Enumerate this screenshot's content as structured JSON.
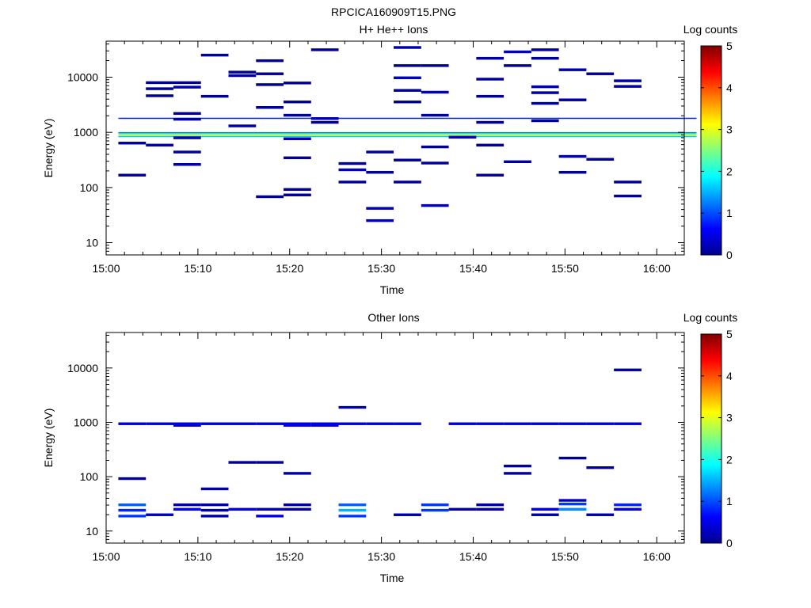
{
  "figure_title": "RPCICA160909T15.PNG",
  "colorbar": {
    "label": "Log counts",
    "ticks": [
      "0",
      "1",
      "2",
      "3",
      "4",
      "5"
    ],
    "range": [
      0,
      5
    ],
    "colormap": "jet"
  },
  "chart_data": [
    {
      "type": "heatmap",
      "title": "H+ He++ Ions",
      "xlabel": "Time",
      "ylabel": "Energy (eV)",
      "y_scale": "log",
      "x_range": [
        "15:00",
        "16:03"
      ],
      "y_range": [
        6,
        45000
      ],
      "x_ticks": [
        "15:00",
        "15:10",
        "15:20",
        "15:30",
        "15:40",
        "15:50",
        "16:00"
      ],
      "y_ticks": [
        "10",
        "100",
        "1000",
        "10000"
      ],
      "time_bins": [
        "15:01:20",
        "15:04:20",
        "15:07:20",
        "15:10:20",
        "15:13:20",
        "15:16:20",
        "15:19:20",
        "15:22:20",
        "15:25:20",
        "15:28:20",
        "15:31:20",
        "15:34:20",
        "15:37:20",
        "15:40:20",
        "15:43:20",
        "15:46:20",
        "15:49:20",
        "15:52:20",
        "15:55:20",
        "15:58:20",
        "16:01:20"
      ],
      "bin_minutes": 3,
      "background_bands": [
        {
          "e_low": 1760,
          "e_high": 1840,
          "level": 0.8
        },
        {
          "e_low": 960,
          "e_high": 1010,
          "level": 1.2
        },
        {
          "e_low": 905,
          "e_high": 960,
          "level": 2.3
        },
        {
          "e_low": 860,
          "e_high": 905,
          "level": 2.9
        },
        {
          "e_low": 820,
          "e_high": 860,
          "level": 1.6
        }
      ],
      "cells": [
        {
          "t": 0,
          "e": 160,
          "level": 0.1
        },
        {
          "t": 0,
          "e": 610,
          "level": 0.2
        },
        {
          "t": 1,
          "e": 560,
          "level": 0.2
        },
        {
          "t": 1,
          "e": 4400,
          "level": 0.1
        },
        {
          "t": 1,
          "e": 5900,
          "level": 0.1
        },
        {
          "t": 1,
          "e": 7600,
          "level": 0.1
        },
        {
          "t": 2,
          "e": 250,
          "level": 0.2
        },
        {
          "t": 2,
          "e": 420,
          "level": 0.1
        },
        {
          "t": 2,
          "e": 760,
          "level": 0.2
        },
        {
          "t": 2,
          "e": 1650,
          "level": 0.2
        },
        {
          "t": 2,
          "e": 2100,
          "level": 0.1
        },
        {
          "t": 2,
          "e": 6300,
          "level": 0.2
        },
        {
          "t": 2,
          "e": 7600,
          "level": 0.1
        },
        {
          "t": 3,
          "e": 4300,
          "level": 0.1
        },
        {
          "t": 3,
          "e": 24000,
          "level": 0.1
        },
        {
          "t": 4,
          "e": 1250,
          "level": 0.2
        },
        {
          "t": 4,
          "e": 10200,
          "level": 0.2
        },
        {
          "t": 4,
          "e": 11800,
          "level": 0.1
        },
        {
          "t": 5,
          "e": 65,
          "level": 0.1
        },
        {
          "t": 5,
          "e": 2700,
          "level": 0.1
        },
        {
          "t": 5,
          "e": 7000,
          "level": 0.1
        },
        {
          "t": 5,
          "e": 11000,
          "level": 0.1
        },
        {
          "t": 5,
          "e": 19000,
          "level": 0.1
        },
        {
          "t": 6,
          "e": 70,
          "level": 0.1
        },
        {
          "t": 6,
          "e": 88,
          "level": 0.1
        },
        {
          "t": 6,
          "e": 330,
          "level": 0.1
        },
        {
          "t": 6,
          "e": 730,
          "level": 0.3
        },
        {
          "t": 6,
          "e": 1950,
          "level": 0.2
        },
        {
          "t": 6,
          "e": 3400,
          "level": 0.1
        },
        {
          "t": 6,
          "e": 7500,
          "level": 0.1
        },
        {
          "t": 7,
          "e": 1450,
          "level": 0.1
        },
        {
          "t": 7,
          "e": 1700,
          "level": 0.3
        },
        {
          "t": 7,
          "e": 30000,
          "level": 0.1
        },
        {
          "t": 8,
          "e": 120,
          "level": 0.1
        },
        {
          "t": 8,
          "e": 200,
          "level": 0.3
        },
        {
          "t": 8,
          "e": 260,
          "level": 0.1
        },
        {
          "t": 9,
          "e": 24,
          "level": 0.3
        },
        {
          "t": 9,
          "e": 40,
          "level": 0.3
        },
        {
          "t": 9,
          "e": 180,
          "level": 0.1
        },
        {
          "t": 9,
          "e": 420,
          "level": 0.1
        },
        {
          "t": 10,
          "e": 120,
          "level": 0.1
        },
        {
          "t": 10,
          "e": 300,
          "level": 0.1
        },
        {
          "t": 10,
          "e": 3400,
          "level": 0.1
        },
        {
          "t": 10,
          "e": 5500,
          "level": 0.1
        },
        {
          "t": 10,
          "e": 9300,
          "level": 0.3
        },
        {
          "t": 10,
          "e": 15500,
          "level": 0.1
        },
        {
          "t": 10,
          "e": 33000,
          "level": 0.2
        },
        {
          "t": 11,
          "e": 45,
          "level": 0.3
        },
        {
          "t": 11,
          "e": 265,
          "level": 0.1
        },
        {
          "t": 11,
          "e": 520,
          "level": 0.1
        },
        {
          "t": 11,
          "e": 1950,
          "level": 0.2
        },
        {
          "t": 11,
          "e": 5100,
          "level": 0.3
        },
        {
          "t": 11,
          "e": 15500,
          "level": 0.1
        },
        {
          "t": 12,
          "e": 780,
          "level": 0.4
        },
        {
          "t": 13,
          "e": 160,
          "level": 0.1
        },
        {
          "t": 13,
          "e": 560,
          "level": 0.1
        },
        {
          "t": 13,
          "e": 1450,
          "level": 0.1
        },
        {
          "t": 13,
          "e": 4300,
          "level": 0.1
        },
        {
          "t": 13,
          "e": 8800,
          "level": 0.1
        },
        {
          "t": 13,
          "e": 21000,
          "level": 0.2
        },
        {
          "t": 14,
          "e": 280,
          "level": 0.1
        },
        {
          "t": 14,
          "e": 15500,
          "level": 0.1
        },
        {
          "t": 14,
          "e": 27500,
          "level": 0.3
        },
        {
          "t": 15,
          "e": 1550,
          "level": 0.2
        },
        {
          "t": 15,
          "e": 3200,
          "level": 0.2
        },
        {
          "t": 15,
          "e": 5000,
          "level": 0.2
        },
        {
          "t": 15,
          "e": 6400,
          "level": 0.2
        },
        {
          "t": 15,
          "e": 21000,
          "level": 0.2
        },
        {
          "t": 15,
          "e": 30000,
          "level": 0.2
        },
        {
          "t": 16,
          "e": 180,
          "level": 0.1
        },
        {
          "t": 16,
          "e": 350,
          "level": 0.3
        },
        {
          "t": 16,
          "e": 3700,
          "level": 0.1
        },
        {
          "t": 16,
          "e": 13000,
          "level": 0.2
        },
        {
          "t": 17,
          "e": 310,
          "level": 0.1
        },
        {
          "t": 17,
          "e": 11000,
          "level": 0.1
        },
        {
          "t": 18,
          "e": 67,
          "level": 0.1
        },
        {
          "t": 18,
          "e": 120,
          "level": 0.1
        },
        {
          "t": 18,
          "e": 6500,
          "level": 0.2
        },
        {
          "t": 18,
          "e": 8200,
          "level": 0.2
        }
      ]
    },
    {
      "type": "heatmap",
      "title": "Other Ions",
      "xlabel": "Time",
      "ylabel": "Energy (eV)",
      "y_scale": "log",
      "x_range": [
        "15:00",
        "16:03"
      ],
      "y_range": [
        6,
        45000
      ],
      "x_ticks": [
        "15:00",
        "15:10",
        "15:20",
        "15:30",
        "15:40",
        "15:50",
        "16:00"
      ],
      "y_ticks": [
        "10",
        "100",
        "1000",
        "10000"
      ],
      "time_bins": [
        "15:01:20",
        "15:04:20",
        "15:07:20",
        "15:10:20",
        "15:13:20",
        "15:16:20",
        "15:19:20",
        "15:22:20",
        "15:25:20",
        "15:28:20",
        "15:31:20",
        "15:34:20",
        "15:37:20",
        "15:40:20",
        "15:43:20",
        "15:46:20",
        "15:49:20",
        "15:52:20",
        "15:55:20",
        "15:58:20",
        "16:01:20"
      ],
      "bin_minutes": 3,
      "background_bands": [],
      "cells": [
        {
          "t": 0,
          "e": 88,
          "level": 0.1
        },
        {
          "t": 0,
          "e": 900,
          "level": 0.5
        },
        {
          "t": 0,
          "e": 18,
          "level": 0.9
        },
        {
          "t": 0,
          "e": 23,
          "level": 0.8
        },
        {
          "t": 0,
          "e": 29,
          "level": 1.1
        },
        {
          "t": 1,
          "e": 900,
          "level": 0.5
        },
        {
          "t": 1,
          "e": 19,
          "level": 0.3
        },
        {
          "t": 2,
          "e": 840,
          "level": 0.3
        },
        {
          "t": 2,
          "e": 900,
          "level": 0.5
        },
        {
          "t": 2,
          "e": 24,
          "level": 0.6
        },
        {
          "t": 2,
          "e": 29,
          "level": 0.2
        },
        {
          "t": 3,
          "e": 57,
          "level": 0.2
        },
        {
          "t": 3,
          "e": 900,
          "level": 0.5
        },
        {
          "t": 3,
          "e": 18,
          "level": 0.2
        },
        {
          "t": 3,
          "e": 23,
          "level": 0.2
        },
        {
          "t": 3,
          "e": 29,
          "level": 0.2
        },
        {
          "t": 4,
          "e": 175,
          "level": 0.1
        },
        {
          "t": 4,
          "e": 900,
          "level": 0.5
        },
        {
          "t": 4,
          "e": 24,
          "level": 0.5
        },
        {
          "t": 5,
          "e": 175,
          "level": 0.1
        },
        {
          "t": 5,
          "e": 900,
          "level": 0.5
        },
        {
          "t": 5,
          "e": 18,
          "level": 0.5
        },
        {
          "t": 5,
          "e": 24,
          "level": 0.3
        },
        {
          "t": 6,
          "e": 110,
          "level": 0.2
        },
        {
          "t": 6,
          "e": 840,
          "level": 0.6
        },
        {
          "t": 6,
          "e": 900,
          "level": 0.5
        },
        {
          "t": 6,
          "e": 24,
          "level": 0.2
        },
        {
          "t": 6,
          "e": 29,
          "level": 0.2
        },
        {
          "t": 7,
          "e": 840,
          "level": 0.5
        },
        {
          "t": 7,
          "e": 900,
          "level": 0.5
        },
        {
          "t": 8,
          "e": 1800,
          "level": 0.2
        },
        {
          "t": 8,
          "e": 900,
          "level": 0.5
        },
        {
          "t": 8,
          "e": 18,
          "level": 0.9
        },
        {
          "t": 8,
          "e": 23,
          "level": 1.5
        },
        {
          "t": 8,
          "e": 29,
          "level": 1.1
        },
        {
          "t": 9,
          "e": 900,
          "level": 0.5
        },
        {
          "t": 10,
          "e": 900,
          "level": 0.5
        },
        {
          "t": 10,
          "e": 19,
          "level": 0.2
        },
        {
          "t": 11,
          "e": 23,
          "level": 0.9
        },
        {
          "t": 11,
          "e": 29,
          "level": 0.9
        },
        {
          "t": 12,
          "e": 900,
          "level": 0.5
        },
        {
          "t": 12,
          "e": 24,
          "level": 0.2
        },
        {
          "t": 13,
          "e": 900,
          "level": 0.5
        },
        {
          "t": 13,
          "e": 24,
          "level": 0.2
        },
        {
          "t": 13,
          "e": 29,
          "level": 0.2
        },
        {
          "t": 14,
          "e": 110,
          "level": 0.1
        },
        {
          "t": 14,
          "e": 150,
          "level": 0.1
        },
        {
          "t": 14,
          "e": 900,
          "level": 0.5
        },
        {
          "t": 15,
          "e": 900,
          "level": 0.5
        },
        {
          "t": 15,
          "e": 19,
          "level": 0.2
        },
        {
          "t": 15,
          "e": 24,
          "level": 0.5
        },
        {
          "t": 16,
          "e": 210,
          "level": 0.1
        },
        {
          "t": 16,
          "e": 900,
          "level": 0.5
        },
        {
          "t": 16,
          "e": 24,
          "level": 1.3
        },
        {
          "t": 16,
          "e": 30,
          "level": 0.9
        },
        {
          "t": 16,
          "e": 35,
          "level": 0.3
        },
        {
          "t": 17,
          "e": 140,
          "level": 0.1
        },
        {
          "t": 17,
          "e": 900,
          "level": 0.5
        },
        {
          "t": 17,
          "e": 19,
          "level": 0.2
        },
        {
          "t": 18,
          "e": 8800,
          "level": 0.2
        },
        {
          "t": 18,
          "e": 900,
          "level": 0.5
        },
        {
          "t": 18,
          "e": 24,
          "level": 0.5
        },
        {
          "t": 18,
          "e": 29,
          "level": 0.8
        }
      ]
    }
  ]
}
